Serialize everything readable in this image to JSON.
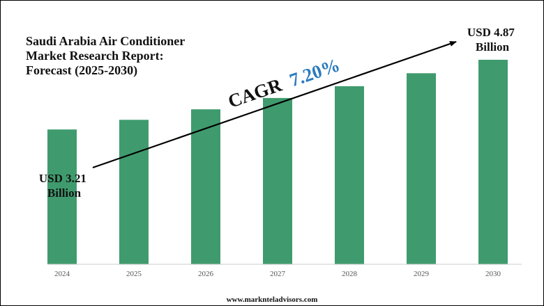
{
  "chart_data": {
    "type": "bar",
    "title_lines": [
      "Saudi Arabia Air Conditioner",
      "Market Research Report:",
      "Forecast (2025-2030)"
    ],
    "categories": [
      "2024",
      "2025",
      "2026",
      "2027",
      "2028",
      "2029",
      "2030"
    ],
    "values": [
      3.21,
      3.44,
      3.69,
      3.96,
      4.24,
      4.55,
      4.87
    ],
    "ylim": [
      0,
      5.25
    ],
    "grid": false,
    "bar_color": "#3f9b6e",
    "annotations": {
      "start_label": [
        "USD 3.21",
        "Billion"
      ],
      "end_label": [
        "USD 4.87",
        "Billion"
      ],
      "cagr_text": "CAGR",
      "cagr_value": "7.20%",
      "cagr_value_color": "#2a7bbf"
    }
  },
  "footer": {
    "source": "www.marknteladvisors.com"
  }
}
